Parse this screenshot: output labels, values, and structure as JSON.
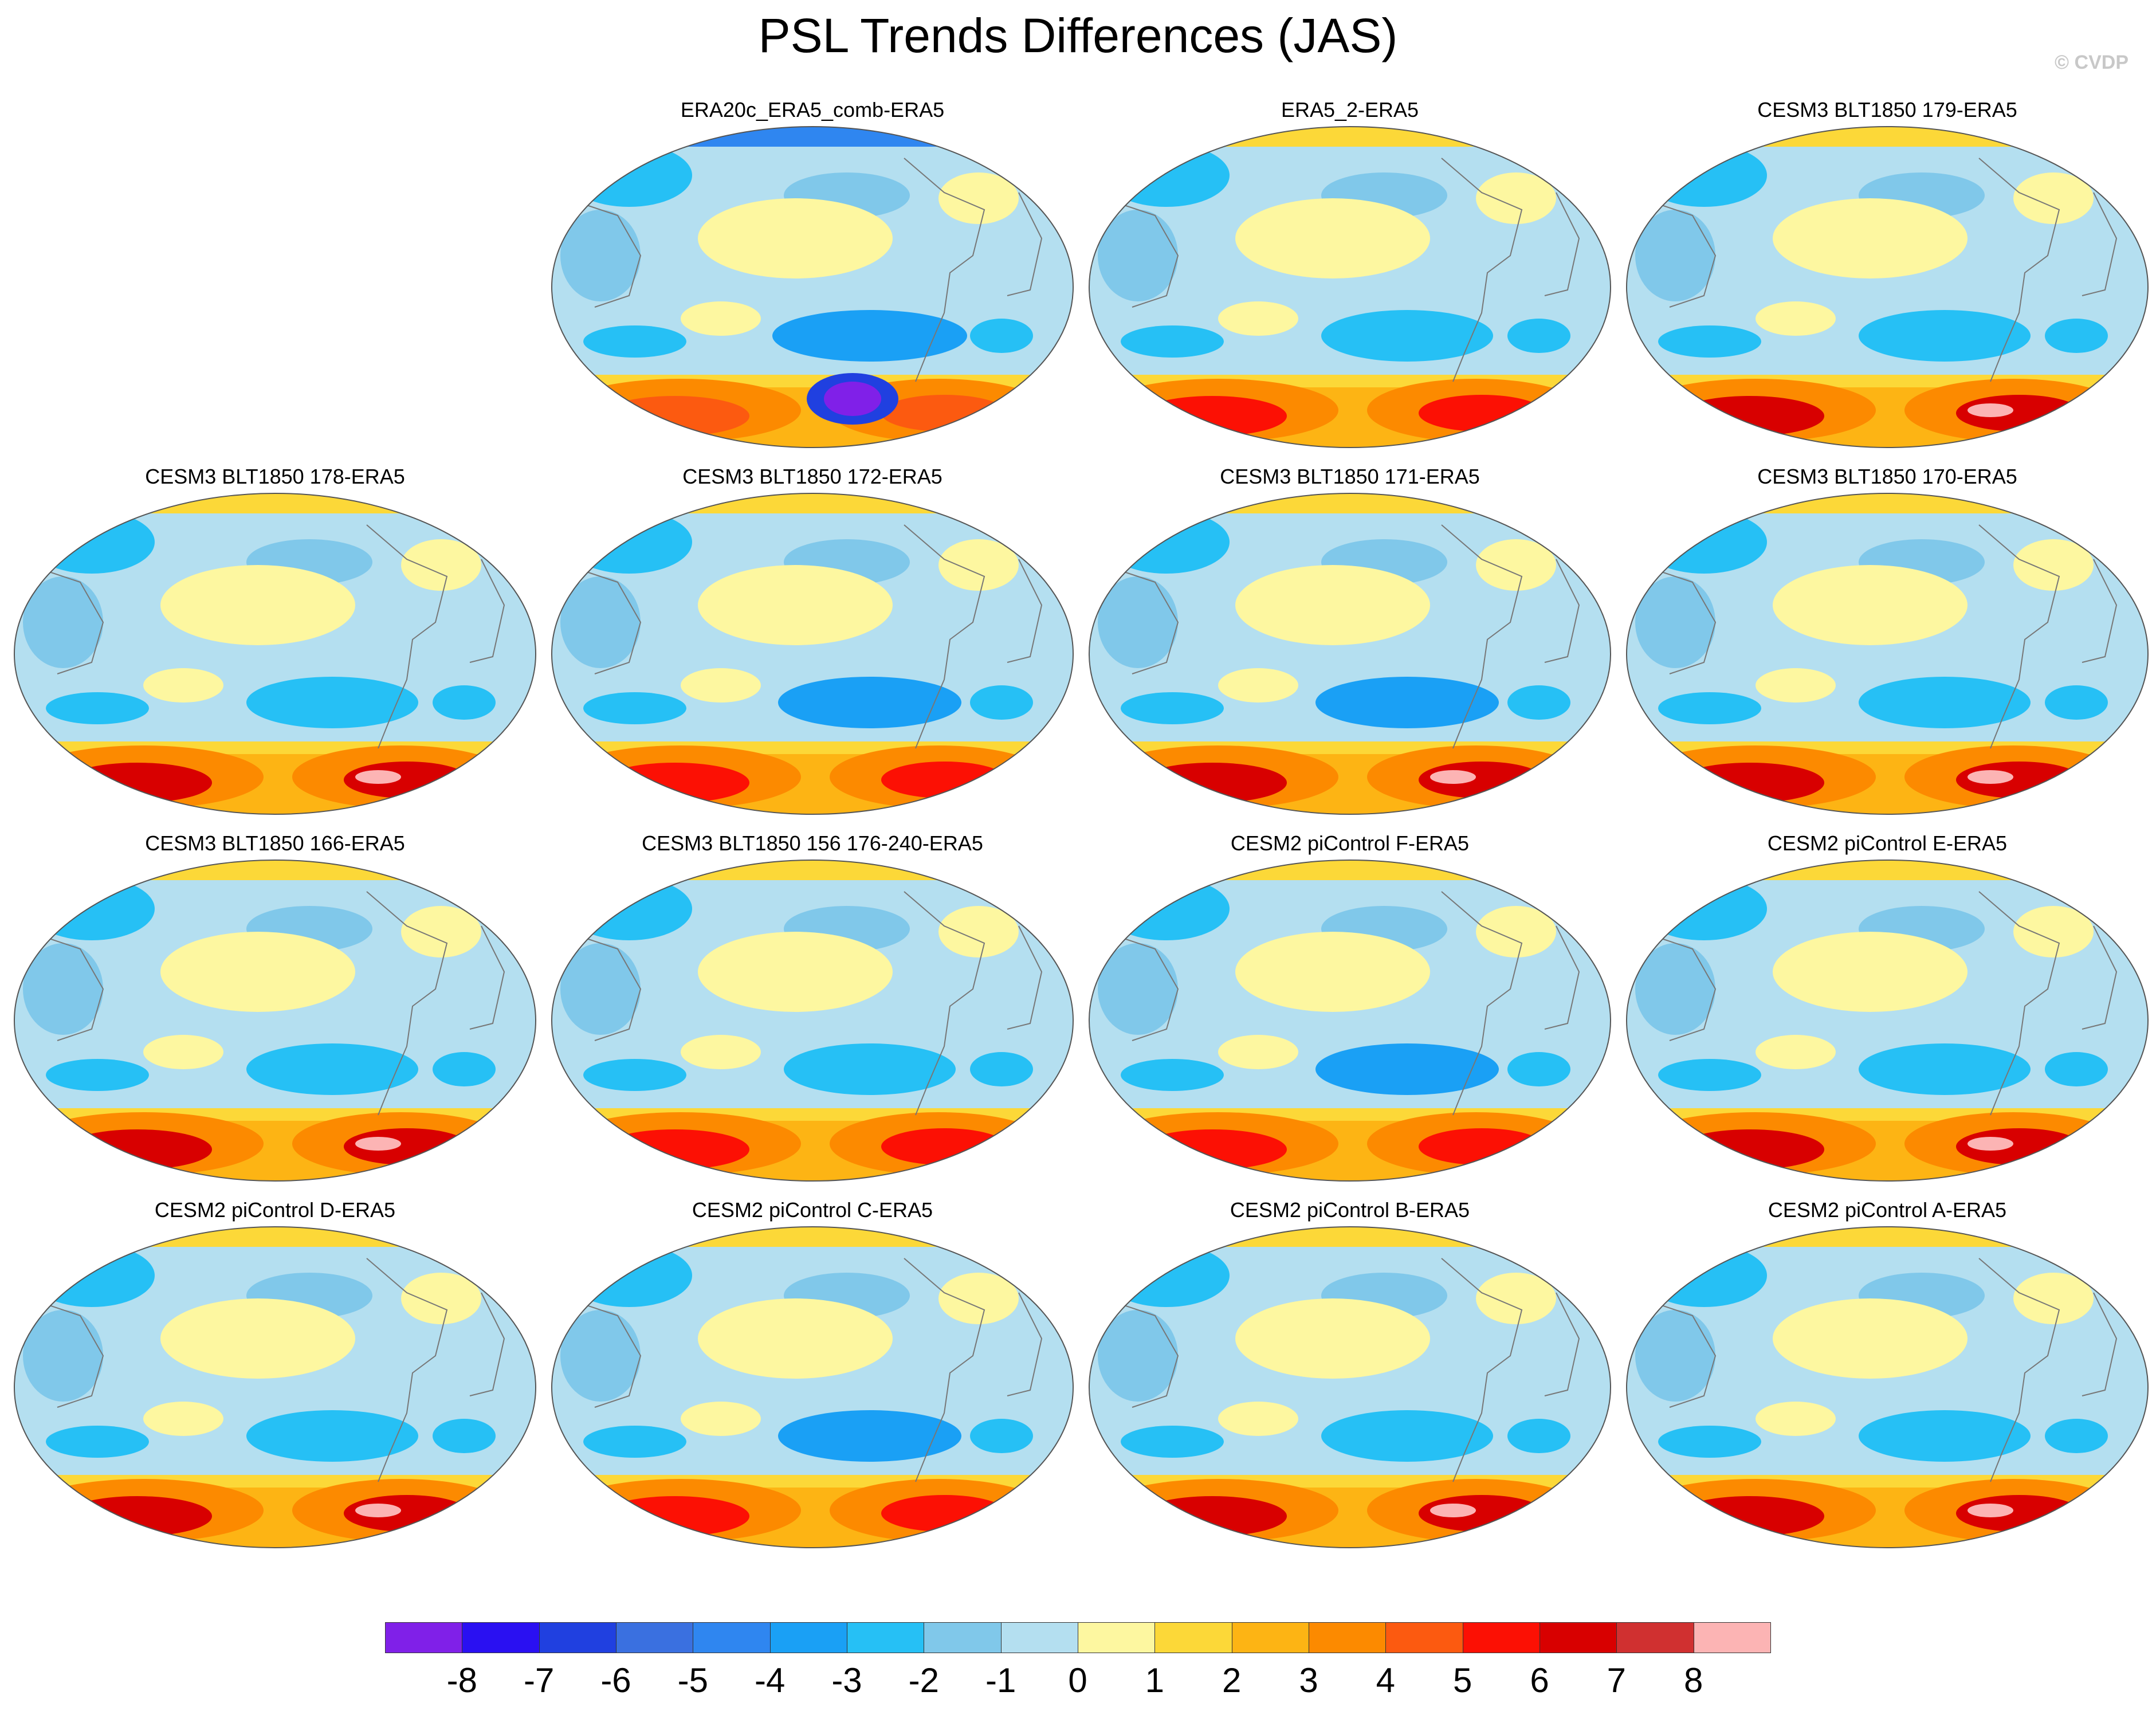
{
  "title": "PSL Trends Differences (JAS)",
  "credit": "© CVDP",
  "panels": [
    {
      "title": "ERA20c_ERA5_comb-ERA5",
      "cold": 3,
      "warm": 1
    },
    {
      "title": "ERA5_2-ERA5",
      "cold": 1,
      "warm": 2
    },
    {
      "title": "CESM3 BLT1850 179-ERA5",
      "cold": 1,
      "warm": 3
    },
    {
      "title": "CESM3 BLT1850 178-ERA5",
      "cold": 1,
      "warm": 3
    },
    {
      "title": "CESM3 BLT1850 172-ERA5",
      "cold": 2,
      "warm": 2
    },
    {
      "title": "CESM3 BLT1850 171-ERA5",
      "cold": 2,
      "warm": 3
    },
    {
      "title": "CESM3 BLT1850 170-ERA5",
      "cold": 1,
      "warm": 3
    },
    {
      "title": "CESM3 BLT1850 166-ERA5",
      "cold": 1,
      "warm": 3
    },
    {
      "title": "CESM3 BLT1850 156 176-240-ERA5",
      "cold": 1,
      "warm": 2
    },
    {
      "title": "CESM2 piControl F-ERA5",
      "cold": 2,
      "warm": 2
    },
    {
      "title": "CESM2 piControl E-ERA5",
      "cold": 1,
      "warm": 3
    },
    {
      "title": "CESM2 piControl D-ERA5",
      "cold": 1,
      "warm": 3
    },
    {
      "title": "CESM2 piControl C-ERA5",
      "cold": 2,
      "warm": 2
    },
    {
      "title": "CESM2 piControl B-ERA5",
      "cold": 1,
      "warm": 3
    },
    {
      "title": "CESM2 piControl A-ERA5",
      "cold": 1,
      "warm": 3
    }
  ],
  "colorbar": {
    "labels": [
      "-8",
      "-7",
      "-6",
      "-5",
      "-4",
      "-3",
      "-2",
      "-1",
      "0",
      "1",
      "2",
      "3",
      "4",
      "5",
      "6",
      "7",
      "8"
    ],
    "colors": [
      "#8020e8",
      "#2a10f2",
      "#2040e0",
      "#3a70e0",
      "#2f86f0",
      "#1aa0f5",
      "#26c0f5",
      "#80c8ea",
      "#b4dff0",
      "#fdf7a0",
      "#fcd838",
      "#fdb414",
      "#fc8a00",
      "#fc5a10",
      "#fc1004",
      "#d80000",
      "#d03030",
      "#fcb4b4"
    ]
  }
}
